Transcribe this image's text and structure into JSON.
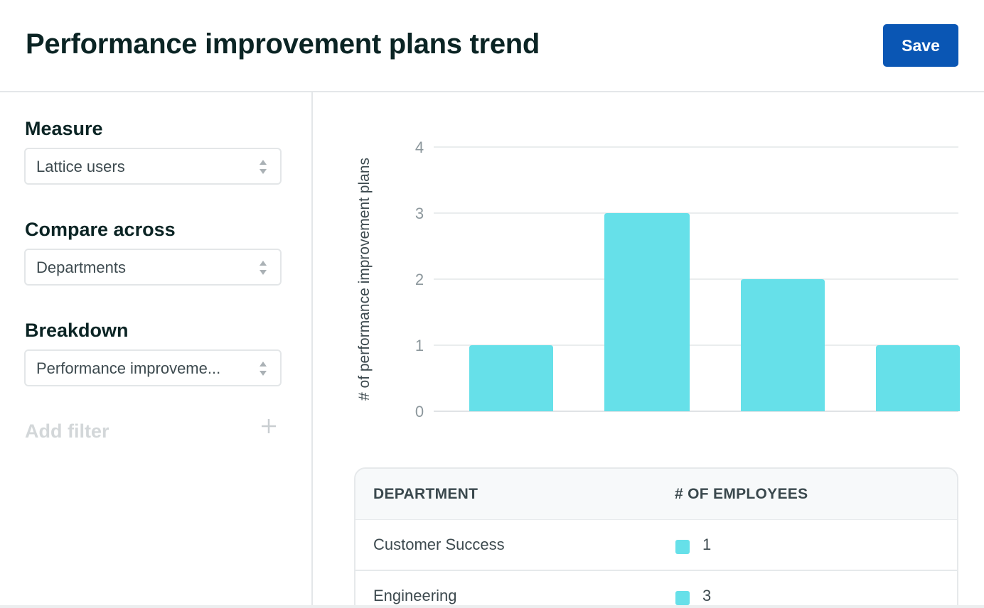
{
  "header": {
    "title": "Performance improvement plans trend",
    "save_label": "Save"
  },
  "sidebar": {
    "measure": {
      "label": "Measure",
      "value": "Lattice users"
    },
    "compare": {
      "label": "Compare across",
      "value": "Departments"
    },
    "breakdown": {
      "label": "Breakdown",
      "value": "Performance improveme..."
    },
    "add_filter": {
      "label": "Add filter",
      "icon": "plus-icon"
    }
  },
  "colors": {
    "accent": "#0a56b4",
    "bar": "#66e0e9"
  },
  "chart_data": {
    "type": "bar",
    "ylabel": "# of performance improvement plans",
    "ylim": [
      0,
      4
    ],
    "yticks": [
      "0",
      "1",
      "2",
      "3",
      "4"
    ],
    "values": [
      1,
      3,
      2,
      1
    ],
    "grid": true
  },
  "table": {
    "headers": {
      "department": "DEPARTMENT",
      "employees": "# OF EMPLOYEES"
    },
    "rows": [
      {
        "department": "Customer Success",
        "count": "1"
      },
      {
        "department": "Engineering",
        "count": "3"
      }
    ]
  }
}
